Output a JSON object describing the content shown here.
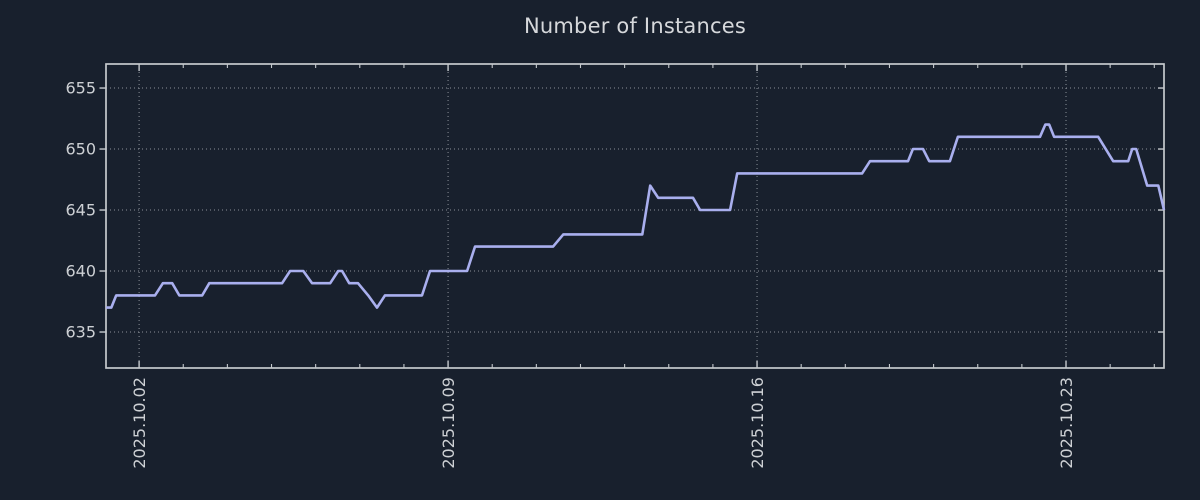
{
  "title": "Number of Instances",
  "colors": {
    "background": "#18202d",
    "line": "#a9afee",
    "title_text": "#d6d8db",
    "tick_text": "#cdd0d4",
    "grid": "#a8aeb5",
    "axis": "#c5c9cd"
  },
  "chart_data": {
    "type": "line",
    "title": "Number of Instances",
    "xlabel": "",
    "ylabel": "",
    "legend": "none",
    "grid": "dotted",
    "x_axis": {
      "tick_labels": [
        "2025.10.02",
        "2025.10.09",
        "2025.10.16",
        "2025.10.23"
      ],
      "tick_days": [
        0,
        7,
        14,
        21
      ],
      "xlim_days": [
        -0.75,
        23.22
      ],
      "minor_tick_interval_days": 1,
      "note": "days measured relative to 2025.10.02"
    },
    "y_axis": {
      "tick_labels": [
        "635",
        "640",
        "645",
        "650",
        "655"
      ],
      "tick_values": [
        635,
        640,
        645,
        650,
        655
      ],
      "ylim": [
        632.05,
        656.97
      ]
    },
    "series": [
      {
        "name": "instances",
        "points_day_value": [
          [
            -0.75,
            637
          ],
          [
            -0.63,
            637
          ],
          [
            -0.52,
            638
          ],
          [
            0.36,
            638
          ],
          [
            0.54,
            639
          ],
          [
            0.75,
            639
          ],
          [
            0.91,
            638
          ],
          [
            1.43,
            638
          ],
          [
            1.59,
            639
          ],
          [
            3.24,
            639
          ],
          [
            3.42,
            640
          ],
          [
            3.72,
            640
          ],
          [
            3.92,
            639
          ],
          [
            4.33,
            639
          ],
          [
            4.51,
            640
          ],
          [
            4.6,
            640
          ],
          [
            4.76,
            639
          ],
          [
            4.96,
            639
          ],
          [
            5.19,
            638
          ],
          [
            5.39,
            637
          ],
          [
            5.57,
            638
          ],
          [
            6.41,
            638
          ],
          [
            6.59,
            640
          ],
          [
            7.43,
            640
          ],
          [
            7.61,
            642
          ],
          [
            9.38,
            642
          ],
          [
            9.61,
            643
          ],
          [
            11.4,
            643
          ],
          [
            11.58,
            647
          ],
          [
            11.76,
            646
          ],
          [
            12.55,
            646
          ],
          [
            12.71,
            645
          ],
          [
            13.39,
            645
          ],
          [
            13.55,
            648
          ],
          [
            16.38,
            648
          ],
          [
            16.56,
            649
          ],
          [
            17.42,
            649
          ],
          [
            17.53,
            650
          ],
          [
            17.76,
            650
          ],
          [
            17.9,
            649
          ],
          [
            18.37,
            649
          ],
          [
            18.55,
            651
          ],
          [
            20.41,
            651
          ],
          [
            20.53,
            652
          ],
          [
            20.62,
            652
          ],
          [
            20.73,
            651
          ],
          [
            21.73,
            651
          ],
          [
            22.07,
            649
          ],
          [
            22.41,
            649
          ],
          [
            22.5,
            650
          ],
          [
            22.59,
            650
          ],
          [
            22.84,
            647
          ],
          [
            23.09,
            647
          ],
          [
            23.22,
            645
          ]
        ]
      }
    ]
  }
}
